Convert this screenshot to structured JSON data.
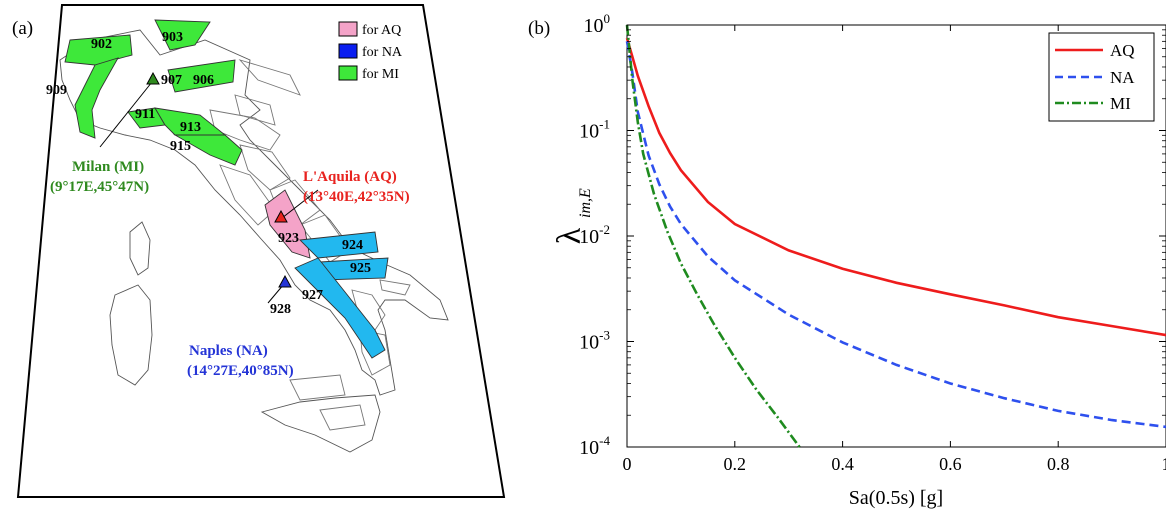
{
  "panel_a": {
    "label": "(a)",
    "legend": [
      {
        "label": "for AQ",
        "color": "#f4a3c8"
      },
      {
        "label": "for NA",
        "color": "#0a1ef0"
      },
      {
        "label": "for MI",
        "color": "#3ee83a"
      }
    ],
    "zones_mi": [
      "902",
      "903",
      "909",
      "907",
      "906",
      "911",
      "913",
      "915"
    ],
    "zones_aq": [
      "923"
    ],
    "zones_na": [
      "924",
      "925",
      "927",
      "928"
    ],
    "cities": [
      {
        "name": "Milan (MI)",
        "coords": "(9°17E,45°47N)",
        "color": "#2f8a1f"
      },
      {
        "name": "L'Aquila (AQ)",
        "coords": "(13°40E,42°35N)",
        "color": "#e8231f"
      },
      {
        "name": "Naples (NA)",
        "coords": "(14°27E,40°85N)",
        "color": "#2434d6"
      }
    ]
  },
  "panel_b": {
    "label": "(b)",
    "colors": {
      "AQ": "#ee1c1c",
      "NA": "#2e50ee",
      "MI": "#1f8b1f"
    }
  },
  "chart_data": {
    "type": "line",
    "xlabel": "Sa(0.5s) [g]",
    "ylabel": "λ",
    "ylabel_subscript": "im,E",
    "xlim": [
      0,
      1
    ],
    "ylim": [
      0.0001,
      1
    ],
    "yscale": "log",
    "xticks": [
      "0",
      "0.2",
      "0.4",
      "0.6",
      "0.8",
      "1"
    ],
    "yticks": [
      {
        "base": "10",
        "exp": "0"
      },
      {
        "base": "10",
        "exp": "-1"
      },
      {
        "base": "10",
        "exp": "-2"
      },
      {
        "base": "10",
        "exp": "-3"
      },
      {
        "base": "10",
        "exp": "-4"
      }
    ],
    "grid": false,
    "legend_position": "top-right",
    "series": [
      {
        "name": "AQ",
        "style": "solid",
        "x": [
          0.0,
          0.01,
          0.02,
          0.04,
          0.06,
          0.08,
          0.1,
          0.15,
          0.2,
          0.3,
          0.4,
          0.5,
          0.6,
          0.7,
          0.8,
          0.9,
          1.0
        ],
        "y": [
          0.75,
          0.5,
          0.33,
          0.17,
          0.095,
          0.061,
          0.042,
          0.021,
          0.013,
          0.0073,
          0.0049,
          0.0036,
          0.0028,
          0.0022,
          0.0017,
          0.0014,
          0.00115
        ]
      },
      {
        "name": "NA",
        "style": "dashed",
        "x": [
          0.0,
          0.01,
          0.02,
          0.04,
          0.06,
          0.08,
          0.1,
          0.15,
          0.2,
          0.3,
          0.4,
          0.5,
          0.6,
          0.7,
          0.8,
          0.9,
          1.0
        ],
        "y": [
          0.7,
          0.35,
          0.15,
          0.058,
          0.031,
          0.019,
          0.013,
          0.0064,
          0.0038,
          0.0018,
          0.00098,
          0.0006,
          0.0004,
          0.00029,
          0.00022,
          0.00018,
          0.000155
        ]
      },
      {
        "name": "MI",
        "style": "dashdot",
        "x": [
          0.0,
          0.01,
          0.02,
          0.03,
          0.05,
          0.075,
          0.1,
          0.13,
          0.16,
          0.2,
          0.24,
          0.28,
          0.32
        ],
        "y": [
          1.0,
          0.3,
          0.12,
          0.06,
          0.025,
          0.011,
          0.0055,
          0.0028,
          0.0015,
          0.0007,
          0.00035,
          0.00019,
          0.0001
        ]
      }
    ]
  }
}
